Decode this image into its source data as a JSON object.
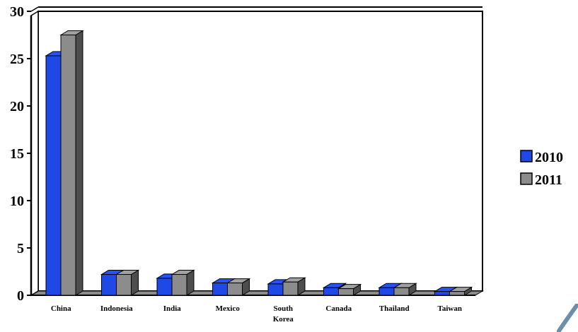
{
  "chart_data": {
    "type": "bar",
    "categories": [
      "China",
      "Indonesia",
      "India",
      "Mexico",
      "South Korea",
      "Canada",
      "Thailand",
      "Taiwan"
    ],
    "category_lines": [
      [
        "China"
      ],
      [
        "Indonesia"
      ],
      [
        "India"
      ],
      [
        "Mexico"
      ],
      [
        "South",
        "Korea"
      ],
      [
        "Canada"
      ],
      [
        "Thailand"
      ],
      [
        "Taiwan"
      ]
    ],
    "series": [
      {
        "name": "2010",
        "values": [
          25.3,
          2.2,
          1.8,
          1.3,
          1.2,
          0.8,
          0.8,
          0.4
        ],
        "color": "#1f49e6"
      },
      {
        "name": "2011",
        "values": [
          27.5,
          2.2,
          2.2,
          1.3,
          1.4,
          0.7,
          0.8,
          0.4
        ],
        "color": "#8c8c8c"
      }
    ],
    "ylim": [
      0,
      30
    ],
    "yticks": [
      "0",
      "5",
      "10",
      "15",
      "20",
      "25",
      "30"
    ],
    "grid": true,
    "three_d": true,
    "legend_position": "right",
    "title": "",
    "xlabel": "",
    "ylabel": ""
  },
  "decor": {
    "accent_color": "#6e8faa"
  }
}
